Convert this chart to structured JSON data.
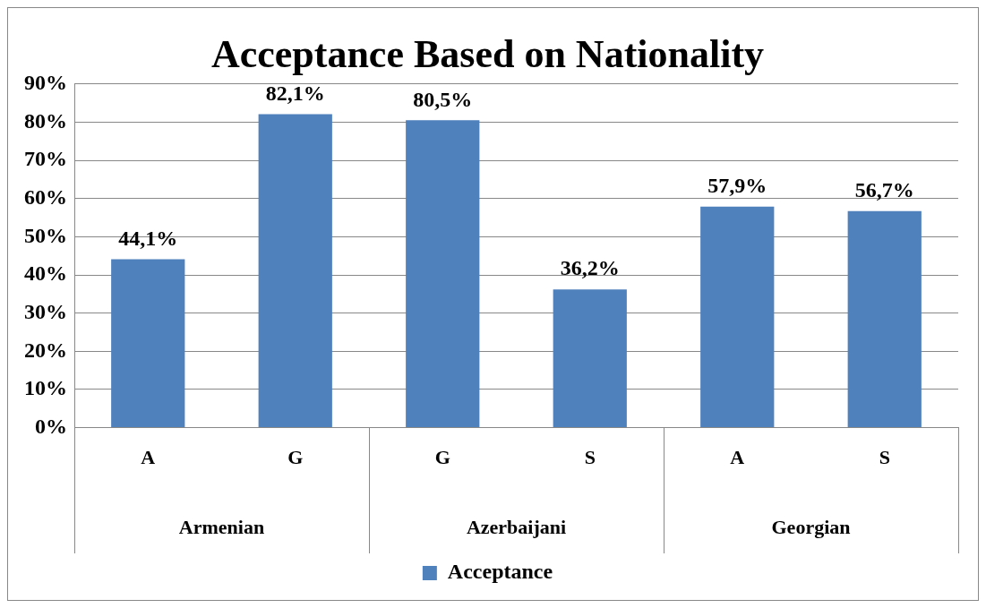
{
  "chart_data": {
    "type": "bar",
    "title": "Acceptance Based on Nationality",
    "categories": [
      "A",
      "G",
      "G",
      "S",
      "A",
      "S"
    ],
    "annotations": [
      "Armenian",
      "Azerbaijani",
      "Georgian"
    ],
    "series": [
      {
        "name": "Acceptance",
        "color": "#4f81bd",
        "values": [
          44.1,
          82.1,
          80.5,
          36.2,
          57.9,
          56.7
        ],
        "value_labels": [
          "44,1%",
          "82,1%",
          "80,5%",
          "36,2%",
          "57,9%",
          "56,7%"
        ]
      }
    ],
    "ylim": [
      0,
      90
    ],
    "yticks": [
      {
        "value": 0,
        "label": "0%"
      },
      {
        "value": 10,
        "label": "10%"
      },
      {
        "value": 20,
        "label": "20%"
      },
      {
        "value": 30,
        "label": "30%"
      },
      {
        "value": 40,
        "label": "40%"
      },
      {
        "value": 50,
        "label": "50%"
      },
      {
        "value": 60,
        "label": "60%"
      },
      {
        "value": 70,
        "label": "70%"
      },
      {
        "value": 80,
        "label": "80%"
      },
      {
        "value": 90,
        "label": "90%"
      }
    ],
    "grid": "y",
    "legend": "bottom"
  }
}
